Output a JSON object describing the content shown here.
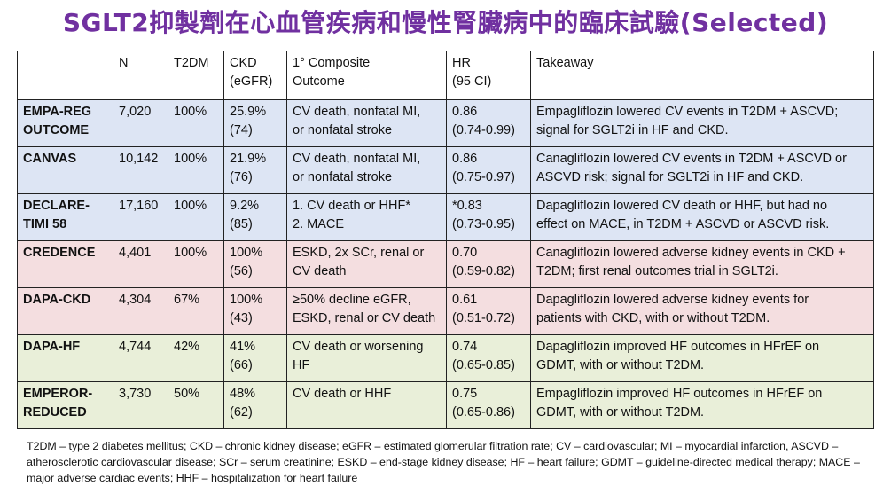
{
  "title": "SGLT2抑製劑在心血管疾病和慢性腎臟病中的臨床試驗(Selected)",
  "table": {
    "headers": [
      "",
      "N",
      "T2DM",
      "CKD\n(eGFR)",
      "1° Composite\nOutcome",
      "HR\n(95 CI)",
      "Takeaway"
    ],
    "rows": [
      {
        "trial": "EMPA-REG\nOUTCOME",
        "n": "7,020",
        "t2dm": "100%",
        "ckd": "25.9%\n(74)",
        "outcome": "CV death, nonfatal MI,\nor nonfatal stroke",
        "hr": "0.86\n(0.74-0.99)",
        "takeaway": "Empagliflozin lowered CV events in T2DM + ASCVD;\nsignal for SGLT2i in HF and CKD.",
        "color": "#dde5f4"
      },
      {
        "trial": "CANVAS",
        "n": "10,142",
        "t2dm": "100%",
        "ckd": "21.9%\n(76)",
        "outcome": "CV death, nonfatal MI,\nor nonfatal stroke",
        "hr": "0.86\n(0.75-0.97)",
        "takeaway": "Canagliflozin lowered CV events in T2DM + ASCVD or\nASCVD risk; signal for SGLT2i in HF and CKD.",
        "color": "#dde5f4"
      },
      {
        "trial": "DECLARE-\nTIMI 58",
        "n": "17,160",
        "t2dm": "100%",
        "ckd": "9.2%\n(85)",
        "outcome": "1.    CV death or HHF*\n2.    MACE",
        "hr": "*0.83\n(0.73-0.95)",
        "takeaway": "Dapagliflozin lowered CV death or HHF, but had no\neffect on MACE, in T2DM + ASCVD or ASCVD risk.",
        "color": "#dde5f4"
      },
      {
        "trial": "CREDENCE",
        "n": "4,401",
        "t2dm": "100%",
        "ckd": "100%\n(56)",
        "outcome": "ESKD, 2x SCr, renal or\nCV death",
        "hr": "0.70\n(0.59-0.82)",
        "takeaway": "Canagliflozin lowered adverse kidney events in CKD +\nT2DM; first renal outcomes trial in SGLT2i.",
        "color": "#f4dee0"
      },
      {
        "trial": "DAPA-CKD",
        "n": "4,304",
        "t2dm": "67%",
        "ckd": "100%\n(43)",
        "outcome": "≥50% decline eGFR,\nESKD, renal or CV death",
        "hr": "0.61\n(0.51-0.72)",
        "takeaway": "Dapagliflozin lowered adverse kidney events for\npatients with CKD, with or without T2DM.",
        "color": "#f4dee0"
      },
      {
        "trial": "DAPA-HF",
        "n": "4,744",
        "t2dm": "42%",
        "ckd": "41%\n(66)",
        "outcome": "CV death or worsening\nHF",
        "hr": "0.74\n(0.65-0.85)",
        "takeaway": "Dapagliflozin improved HF outcomes in HFrEF on\nGDMT, with or without T2DM.",
        "color": "#e9efd9"
      },
      {
        "trial": "EMPEROR-\nREDUCED",
        "n": "3,730",
        "t2dm": "50%",
        "ckd": "48%\n(62)",
        "outcome": "CV death or HHF",
        "hr": "0.75\n(0.65-0.86)",
        "takeaway": "Empagliflozin improved HF outcomes in HFrEF on\nGDMT, with or without T2DM.",
        "color": "#e9efd9"
      }
    ]
  },
  "footnote": "T2DM – type 2 diabetes mellitus; CKD – chronic kidney disease; eGFR – estimated glomerular filtration rate; CV – cardiovascular; MI – myocardial infarction, ASCVD – atherosclerotic cardiovascular disease; SCr – serum creatinine; ESKD – end-stage kidney disease; HF – heart failure; GDMT – guideline-directed medical therapy; MACE – major adverse cardiac events; HHF – hospitalization for heart failure"
}
